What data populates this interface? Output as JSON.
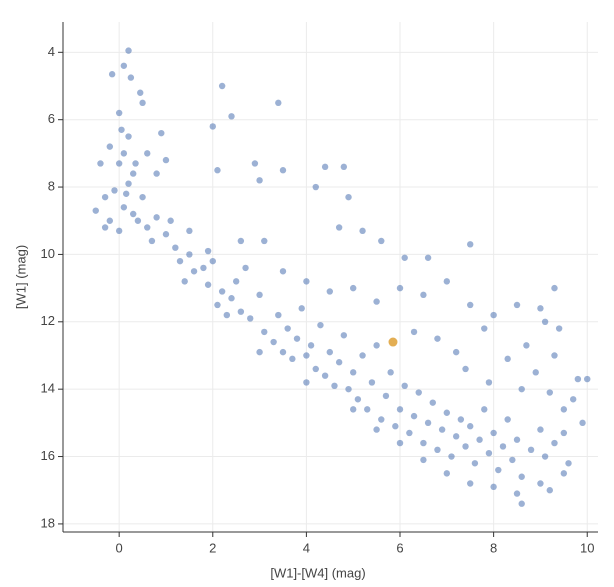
{
  "chart_data": {
    "type": "scatter",
    "xlabel": "[W1]-[W4] (mag)",
    "ylabel": "[W1] (mag)",
    "x": [
      0.2,
      0.1,
      -0.15,
      0.25,
      0.45,
      0.0,
      0.5,
      0.05,
      0.2,
      -0.2,
      0.9,
      0.1,
      0.0,
      0.3,
      -0.4,
      0.8,
      1.0,
      0.2,
      -0.1,
      0.5,
      -0.3,
      0.1,
      -0.5,
      0.3,
      -0.2,
      0.6,
      0.0,
      0.4,
      0.8,
      1.0,
      0.7,
      -0.3,
      0.15,
      0.6,
      0.35,
      1.2,
      1.3,
      1.5,
      1.6,
      1.8,
      1.4,
      1.9,
      2.0,
      2.2,
      2.1,
      2.4,
      2.6,
      2.3,
      2.8,
      1.1,
      1.5,
      1.9,
      2.5,
      2.7,
      3.0,
      3.1,
      3.3,
      3.4,
      3.5,
      3.6,
      3.7,
      3.8,
      3.9,
      4.0,
      4.1,
      4.2,
      4.3,
      4.4,
      4.5,
      4.6,
      4.7,
      4.8,
      4.9,
      5.0,
      5.1,
      5.2,
      5.3,
      5.4,
      5.5,
      5.6,
      5.7,
      5.8,
      5.9,
      6.0,
      6.1,
      6.2,
      6.3,
      6.4,
      6.5,
      6.6,
      6.7,
      6.8,
      6.9,
      7.0,
      7.1,
      7.2,
      7.3,
      7.4,
      7.5,
      7.6,
      7.7,
      7.8,
      7.9,
      8.0,
      8.1,
      8.2,
      8.3,
      8.4,
      8.5,
      8.6,
      8.8,
      9.0,
      9.1,
      9.3,
      9.5,
      9.6,
      9.8,
      9.7,
      2.2,
      2.4,
      2.0,
      3.4,
      2.9,
      3.0,
      3.5,
      4.4,
      4.8,
      4.2,
      4.9,
      2.1,
      2.6,
      3.1,
      4.7,
      5.2,
      5.6,
      6.1,
      6.6,
      7.5,
      6.0,
      6.5,
      7.0,
      7.5,
      8.0,
      8.5,
      9.0,
      9.3,
      9.1,
      9.4,
      8.7,
      8.3,
      7.8,
      7.2,
      6.8,
      6.3,
      5.5,
      5.0,
      4.5,
      4.0,
      3.5,
      8.9,
      9.2,
      9.5,
      9.9,
      10.0,
      9.3,
      8.6,
      7.9,
      7.4,
      3.0,
      4.0,
      5.0,
      5.5,
      6.0,
      6.5,
      7.0,
      7.5,
      8.0,
      8.5,
      8.6,
      9.2,
      9.5,
      9.0
    ],
    "values": [
      3.95,
      4.4,
      4.65,
      4.75,
      5.2,
      5.8,
      5.5,
      6.3,
      6.5,
      6.8,
      6.4,
      7.0,
      7.3,
      7.6,
      7.3,
      7.6,
      7.2,
      7.9,
      8.1,
      8.3,
      8.3,
      8.6,
      8.7,
      8.8,
      9.0,
      9.2,
      9.3,
      9.0,
      8.9,
      9.4,
      9.6,
      9.2,
      8.2,
      7.0,
      7.3,
      9.8,
      10.2,
      10.0,
      10.5,
      10.4,
      10.8,
      10.9,
      10.2,
      11.1,
      11.5,
      11.3,
      11.7,
      11.8,
      11.9,
      9.0,
      9.3,
      9.9,
      10.8,
      10.4,
      11.2,
      12.3,
      12.6,
      11.8,
      12.9,
      12.2,
      13.1,
      12.5,
      11.6,
      13.0,
      12.7,
      13.4,
      12.1,
      13.6,
      12.9,
      13.9,
      13.2,
      12.4,
      14.0,
      13.5,
      14.3,
      13.0,
      14.6,
      13.8,
      12.7,
      14.9,
      14.2,
      13.5,
      15.1,
      14.6,
      13.9,
      15.3,
      14.8,
      14.1,
      15.6,
      15.0,
      14.4,
      15.8,
      15.2,
      14.7,
      16.0,
      15.4,
      14.9,
      15.7,
      15.1,
      16.2,
      15.5,
      14.6,
      15.9,
      15.3,
      16.4,
      15.7,
      14.9,
      16.1,
      15.5,
      16.6,
      15.8,
      15.2,
      16.0,
      15.6,
      15.3,
      16.2,
      13.7,
      14.3,
      5.0,
      5.9,
      6.2,
      5.5,
      7.3,
      7.8,
      7.5,
      7.4,
      7.4,
      8.0,
      8.3,
      7.5,
      9.6,
      9.6,
      9.2,
      9.3,
      9.6,
      10.1,
      10.1,
      9.7,
      11.0,
      11.2,
      10.8,
      11.5,
      11.8,
      11.5,
      11.6,
      11.0,
      12.0,
      12.2,
      12.7,
      13.1,
      12.2,
      12.9,
      12.5,
      12.3,
      11.4,
      11.0,
      11.1,
      10.8,
      10.5,
      13.5,
      14.1,
      14.6,
      15.0,
      13.7,
      13.0,
      14.0,
      13.8,
      13.4,
      12.9,
      13.8,
      14.6,
      15.2,
      15.6,
      16.1,
      16.5,
      16.8,
      16.9,
      17.1,
      17.4,
      17.0,
      16.5,
      16.8
    ],
    "color": "#5a7db8",
    "highlight": {
      "x": 5.85,
      "y": 12.6,
      "color": "#e0a540"
    },
    "xlim": [
      -1.2,
      10.23
    ],
    "xticks": [
      0,
      2,
      4,
      6,
      8,
      10
    ],
    "ylim": [
      3.1,
      18.24
    ],
    "yticks": [
      4,
      6,
      8,
      10,
      12,
      14,
      16,
      18
    ],
    "y_reversed": true,
    "grid": true
  }
}
